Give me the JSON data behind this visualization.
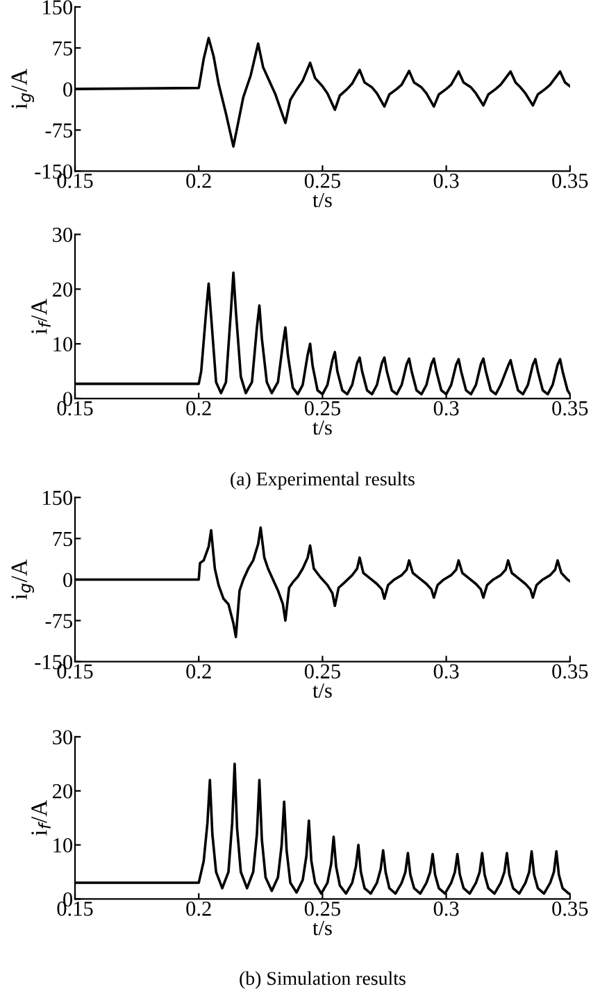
{
  "chart_data": [
    {
      "type": "line",
      "xlabel": "t/s",
      "ylabel": "i$_{g}$/A",
      "color": "#000000",
      "xlim": [
        0.15,
        0.35
      ],
      "ylim": [
        -150,
        150
      ],
      "xticks": [
        0.15,
        0.2,
        0.25,
        0.3,
        0.35
      ],
      "yticks": [
        -150,
        -75,
        0,
        75,
        150
      ],
      "grid": false,
      "x": [
        0.15,
        0.2,
        0.2005,
        0.202,
        0.204,
        0.206,
        0.208,
        0.211,
        0.214,
        0.216,
        0.218,
        0.221,
        0.224,
        0.226,
        0.228,
        0.231,
        0.235,
        0.237,
        0.239,
        0.242,
        0.245,
        0.247,
        0.25,
        0.252,
        0.255,
        0.257,
        0.26,
        0.262,
        0.265,
        0.267,
        0.27,
        0.272,
        0.275,
        0.277,
        0.28,
        0.282,
        0.285,
        0.287,
        0.29,
        0.292,
        0.295,
        0.297,
        0.3,
        0.302,
        0.305,
        0.307,
        0.31,
        0.312,
        0.315,
        0.317,
        0.32,
        0.322,
        0.326,
        0.328,
        0.33,
        0.332,
        0.335,
        0.337,
        0.34,
        0.342,
        0.346,
        0.348,
        0.35
      ],
      "values": [
        0,
        2,
        15,
        55,
        93,
        60,
        10,
        -45,
        -105,
        -60,
        -15,
        25,
        83,
        40,
        20,
        -10,
        -62,
        -20,
        -5,
        15,
        48,
        20,
        5,
        -8,
        -38,
        -12,
        0,
        10,
        35,
        12,
        3,
        -8,
        -32,
        -10,
        0,
        8,
        33,
        12,
        3,
        -8,
        -32,
        -10,
        0,
        8,
        32,
        12,
        3,
        -8,
        -30,
        -10,
        0,
        8,
        32,
        12,
        3,
        -8,
        -30,
        -10,
        0,
        8,
        32,
        12,
        5
      ]
    },
    {
      "type": "line",
      "xlabel": "t/s",
      "ylabel": "i$_{f}$/A",
      "color": "#000000",
      "xlim": [
        0.15,
        0.35
      ],
      "ylim": [
        0,
        30
      ],
      "xticks": [
        0.15,
        0.2,
        0.25,
        0.3,
        0.35
      ],
      "yticks": [
        0,
        10,
        20,
        30
      ],
      "grid": false,
      "annotations": [
        "(a) Experimental results"
      ],
      "x": [
        0.15,
        0.2,
        0.201,
        0.203,
        0.204,
        0.205,
        0.207,
        0.209,
        0.211,
        0.213,
        0.214,
        0.215,
        0.217,
        0.219,
        0.2215,
        0.2235,
        0.2245,
        0.2255,
        0.2275,
        0.2295,
        0.232,
        0.234,
        0.235,
        0.236,
        0.238,
        0.24,
        0.242,
        0.244,
        0.245,
        0.246,
        0.248,
        0.25,
        0.252,
        0.254,
        0.255,
        0.256,
        0.258,
        0.26,
        0.262,
        0.264,
        0.265,
        0.266,
        0.268,
        0.27,
        0.272,
        0.274,
        0.275,
        0.276,
        0.278,
        0.28,
        0.282,
        0.284,
        0.285,
        0.286,
        0.288,
        0.29,
        0.292,
        0.294,
        0.295,
        0.296,
        0.298,
        0.3,
        0.302,
        0.304,
        0.305,
        0.306,
        0.308,
        0.31,
        0.312,
        0.314,
        0.315,
        0.316,
        0.318,
        0.32,
        0.322,
        0.325,
        0.326,
        0.327,
        0.329,
        0.331,
        0.333,
        0.335,
        0.336,
        0.337,
        0.339,
        0.341,
        0.343,
        0.345,
        0.346,
        0.347,
        0.349,
        0.35
      ],
      "values": [
        2.7,
        2.7,
        5,
        16,
        21,
        15,
        3,
        1,
        3,
        16,
        23,
        16,
        4,
        1,
        3,
        13,
        17,
        11,
        3,
        1,
        3,
        10,
        13,
        8,
        2,
        0.8,
        2.5,
        8,
        10,
        6,
        1.5,
        0.8,
        2.5,
        7,
        8.5,
        5,
        1.5,
        0.8,
        2.5,
        6.5,
        7.5,
        5,
        1.5,
        0.8,
        2.5,
        6.5,
        7.5,
        5,
        1.5,
        0.8,
        2.5,
        6.3,
        7.3,
        5,
        1.5,
        0.8,
        2.5,
        6.3,
        7.3,
        5,
        1.5,
        0.8,
        2.5,
        6.2,
        7.2,
        5,
        1.5,
        0.8,
        2.5,
        6.3,
        7.3,
        5,
        1.5,
        0.8,
        2.5,
        6,
        7,
        5,
        1.5,
        0.8,
        2.5,
        6.2,
        7.2,
        5,
        1.5,
        0.8,
        2.5,
        6.2,
        7.2,
        5,
        1.5,
        0.8
      ]
    },
    {
      "type": "line",
      "xlabel": "t/s",
      "ylabel": "i$_{g}$/A",
      "color": "#000000",
      "xlim": [
        0.15,
        0.35
      ],
      "ylim": [
        -150,
        150
      ],
      "xticks": [
        0.15,
        0.2,
        0.25,
        0.3,
        0.35
      ],
      "yticks": [
        -150,
        -75,
        0,
        75,
        150
      ],
      "grid": false,
      "x": [
        0.15,
        0.2,
        0.2005,
        0.202,
        0.204,
        0.205,
        0.2065,
        0.208,
        0.21,
        0.212,
        0.214,
        0.215,
        0.2165,
        0.218,
        0.22,
        0.222,
        0.224,
        0.225,
        0.2265,
        0.228,
        0.23,
        0.232,
        0.234,
        0.235,
        0.2365,
        0.238,
        0.24,
        0.242,
        0.244,
        0.245,
        0.2465,
        0.249,
        0.252,
        0.254,
        0.255,
        0.2565,
        0.259,
        0.262,
        0.264,
        0.265,
        0.2665,
        0.269,
        0.272,
        0.274,
        0.275,
        0.2765,
        0.279,
        0.282,
        0.284,
        0.285,
        0.2865,
        0.289,
        0.292,
        0.294,
        0.295,
        0.2965,
        0.299,
        0.302,
        0.304,
        0.305,
        0.3065,
        0.309,
        0.312,
        0.314,
        0.315,
        0.3165,
        0.319,
        0.322,
        0.324,
        0.325,
        0.3265,
        0.329,
        0.332,
        0.334,
        0.335,
        0.3365,
        0.339,
        0.342,
        0.344,
        0.345,
        0.3465,
        0.349,
        0.35
      ],
      "values": [
        0,
        0,
        30,
        35,
        60,
        90,
        20,
        -10,
        -35,
        -45,
        -80,
        -105,
        -20,
        0,
        20,
        35,
        65,
        95,
        40,
        20,
        0,
        -20,
        -45,
        -75,
        -15,
        -5,
        5,
        20,
        40,
        62,
        20,
        5,
        -10,
        -25,
        -48,
        -15,
        -5,
        8,
        20,
        40,
        12,
        3,
        -8,
        -18,
        -35,
        -10,
        0,
        8,
        18,
        35,
        12,
        3,
        -8,
        -18,
        -33,
        -10,
        0,
        8,
        18,
        35,
        12,
        3,
        -8,
        -18,
        -33,
        -10,
        0,
        8,
        18,
        35,
        12,
        3,
        -8,
        -18,
        -33,
        -10,
        0,
        8,
        18,
        35,
        12,
        0,
        -3
      ]
    },
    {
      "type": "line",
      "xlabel": "t/s",
      "ylabel": "i$_{f}$/A",
      "color": "#000000",
      "xlim": [
        0.15,
        0.35
      ],
      "ylim": [
        0,
        30
      ],
      "xticks": [
        0.15,
        0.2,
        0.25,
        0.3,
        0.35
      ],
      "yticks": [
        0,
        10,
        20,
        30
      ],
      "grid": false,
      "annotations": [
        "(b) Simulation results"
      ],
      "x": [
        0.15,
        0.2,
        0.202,
        0.2035,
        0.2045,
        0.2055,
        0.207,
        0.2095,
        0.212,
        0.2135,
        0.2145,
        0.2155,
        0.217,
        0.2195,
        0.222,
        0.2235,
        0.2245,
        0.2255,
        0.227,
        0.2295,
        0.232,
        0.2335,
        0.2345,
        0.2355,
        0.237,
        0.2395,
        0.242,
        0.2435,
        0.2445,
        0.2455,
        0.247,
        0.2495,
        0.252,
        0.2535,
        0.2545,
        0.2555,
        0.257,
        0.2595,
        0.262,
        0.2635,
        0.2645,
        0.2655,
        0.267,
        0.2695,
        0.272,
        0.2735,
        0.2745,
        0.2755,
        0.277,
        0.2795,
        0.282,
        0.2835,
        0.2845,
        0.2855,
        0.287,
        0.2895,
        0.292,
        0.2935,
        0.2945,
        0.2955,
        0.297,
        0.2995,
        0.302,
        0.3035,
        0.3045,
        0.3055,
        0.307,
        0.3095,
        0.312,
        0.3135,
        0.3145,
        0.3155,
        0.317,
        0.3195,
        0.322,
        0.3235,
        0.3245,
        0.3255,
        0.327,
        0.3295,
        0.332,
        0.3335,
        0.3345,
        0.3355,
        0.337,
        0.3395,
        0.342,
        0.3435,
        0.3445,
        0.3455,
        0.347,
        0.3495,
        0.35
      ],
      "values": [
        3,
        3,
        7,
        14,
        22,
        12,
        5,
        2,
        5,
        14,
        25,
        13,
        5,
        2,
        5,
        12,
        22,
        11,
        4,
        1.5,
        4,
        10,
        18,
        9,
        3,
        1.2,
        3.5,
        8,
        14.5,
        7,
        3,
        1,
        3,
        6.5,
        11.5,
        6,
        2.5,
        1,
        3,
        6,
        10,
        5,
        2,
        1,
        3,
        5.5,
        9,
        5,
        2,
        1,
        3,
        5,
        8.5,
        4.5,
        2,
        1,
        3,
        5,
        8.3,
        4.5,
        2,
        1,
        3,
        5,
        8.3,
        4.5,
        2,
        1,
        3,
        5,
        8.5,
        4.5,
        2,
        1,
        3,
        5,
        8.5,
        4.5,
        2,
        1,
        3,
        5,
        8.8,
        4.5,
        2,
        1,
        3,
        5,
        8.8,
        4.5,
        2,
        1,
        1
      ]
    }
  ]
}
